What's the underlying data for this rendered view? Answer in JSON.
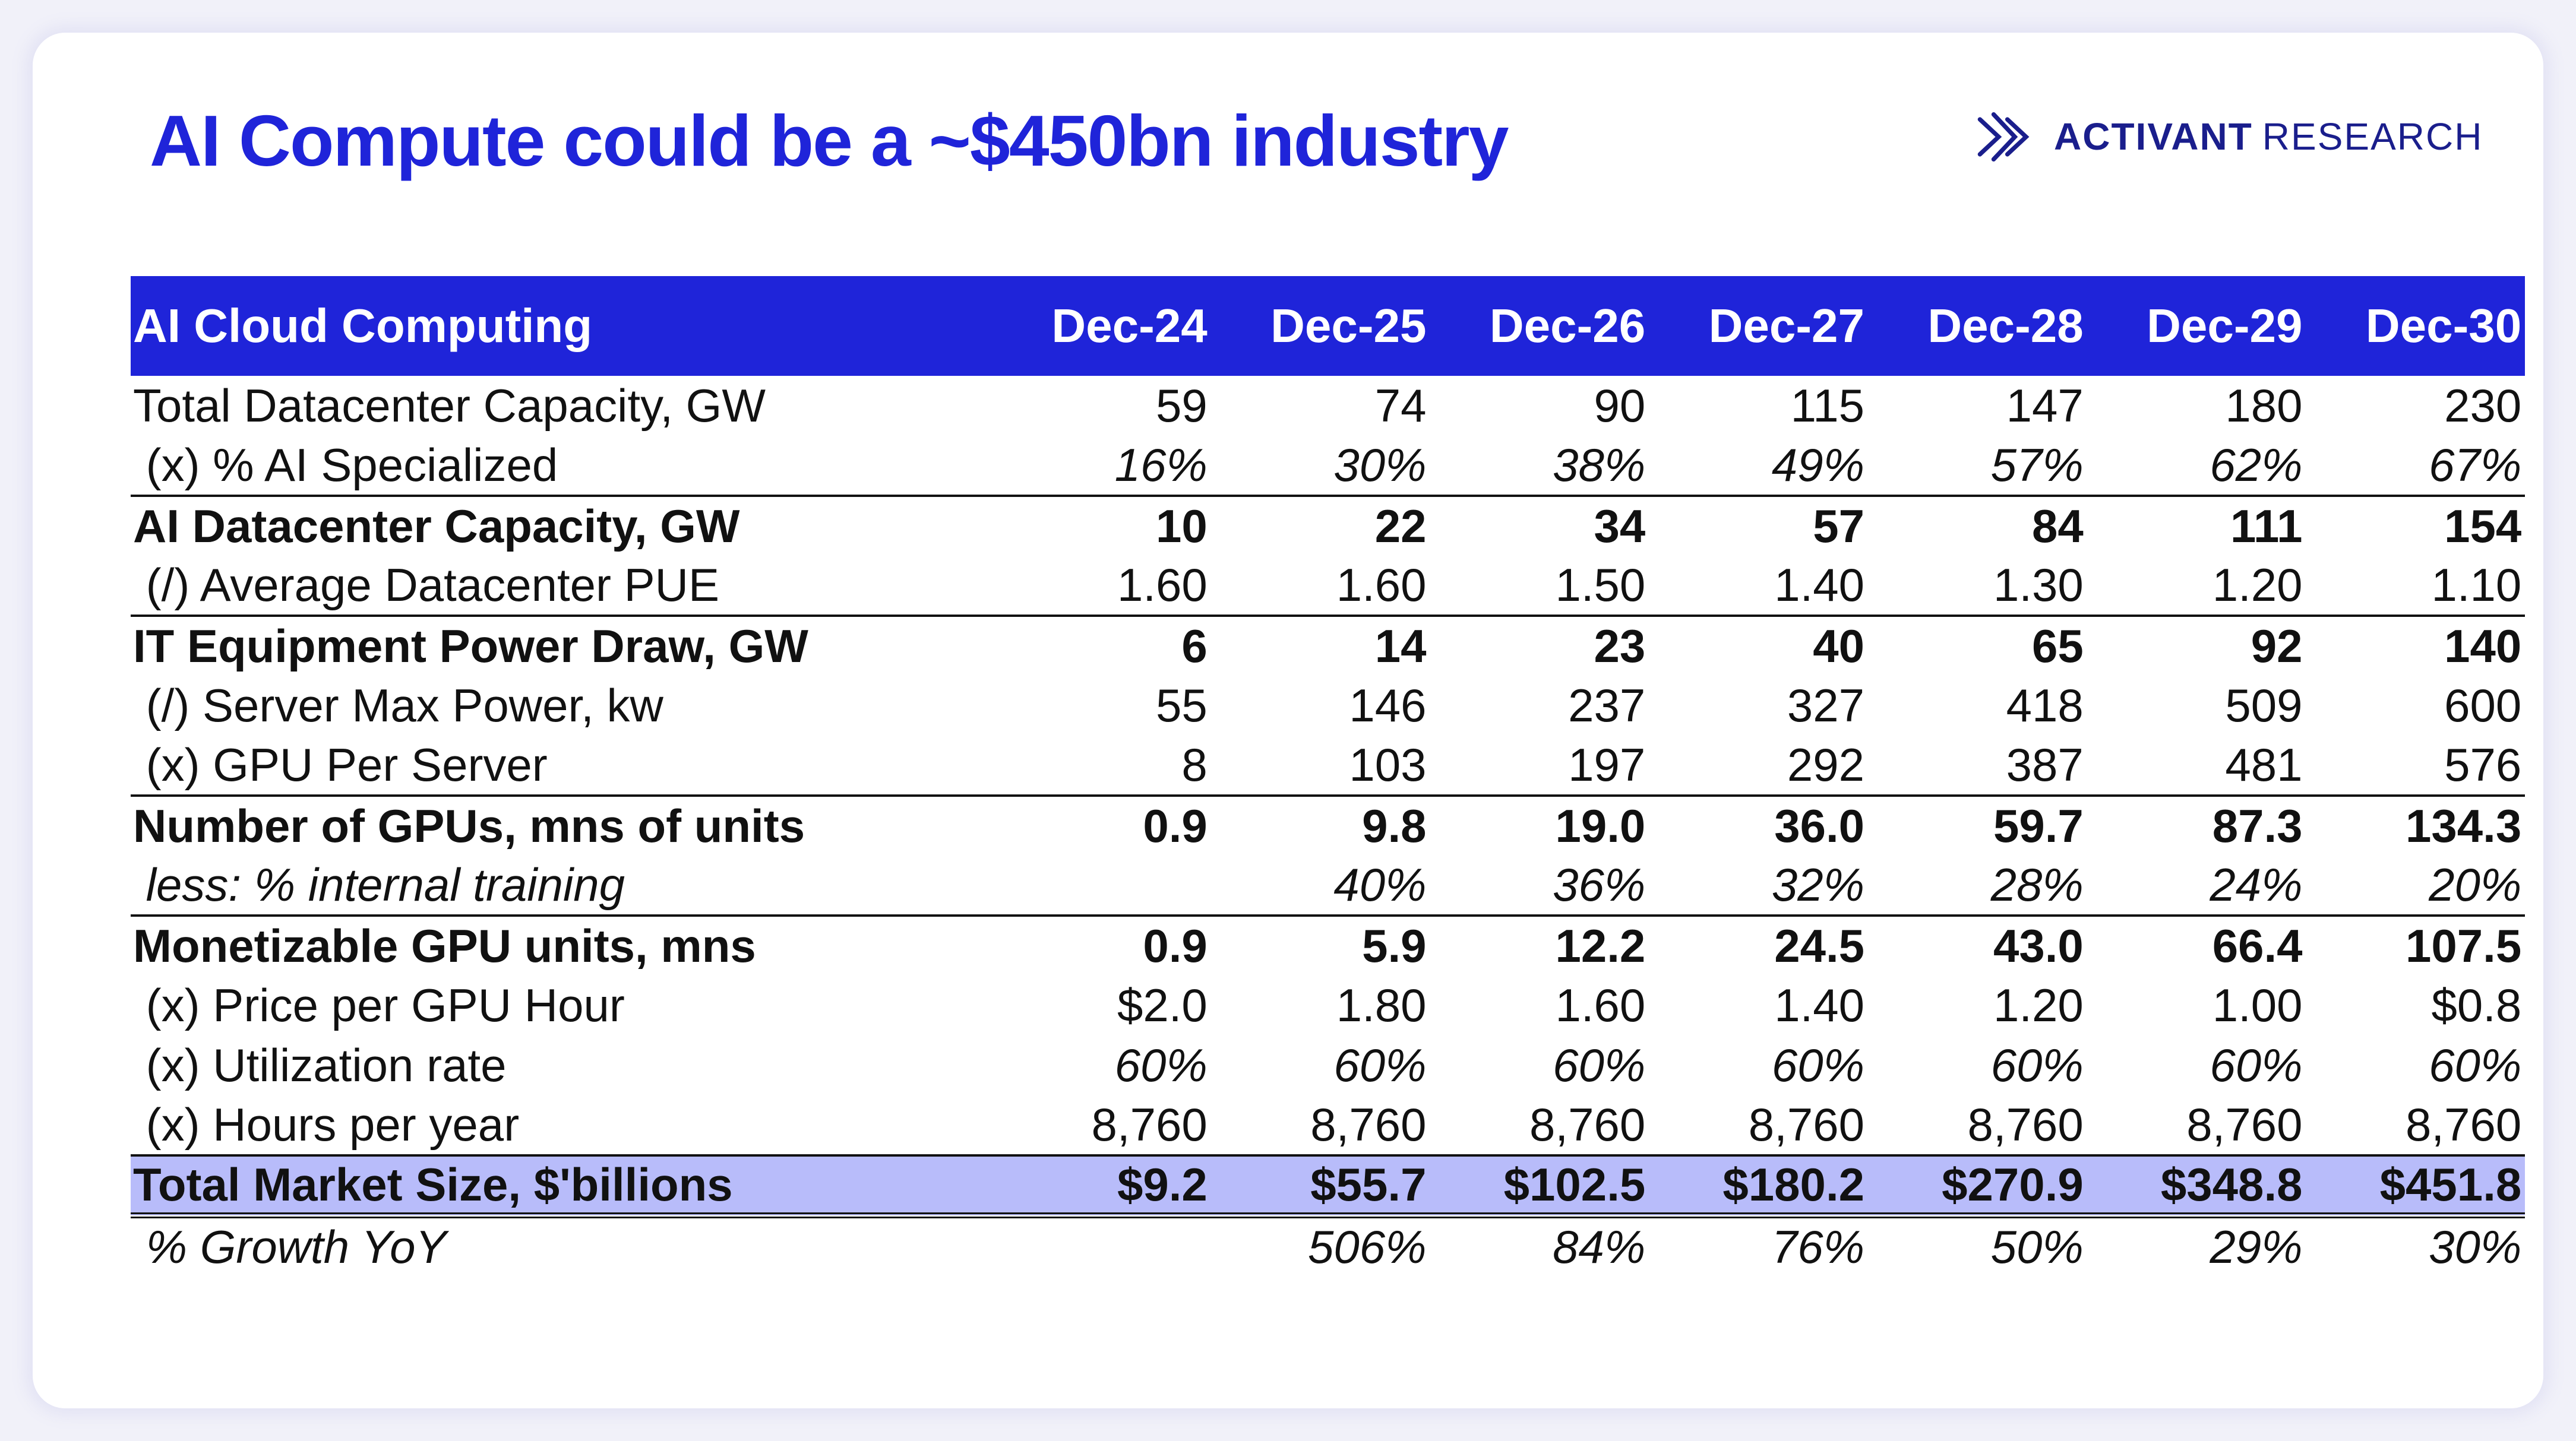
{
  "header": {
    "title": "AI Compute could be a ~$450bn industry",
    "brand_bold": "ACTIVANT",
    "brand_light": "RESEARCH",
    "brand_icon": "activant-chevron-logo-icon"
  },
  "colors": {
    "accent": "#1f24d9",
    "total_row": "#b8bcfa",
    "text": "#111111"
  },
  "table": {
    "header_label": "AI Cloud Computing",
    "columns": [
      "Dec-24",
      "Dec-25",
      "Dec-26",
      "Dec-27",
      "Dec-28",
      "Dec-29",
      "Dec-30"
    ],
    "rows": [
      {
        "label": "Total Datacenter Capacity, GW",
        "values": [
          "59",
          "74",
          "90",
          "115",
          "147",
          "180",
          "230"
        ],
        "bold": false,
        "italic": false,
        "sep": false,
        "total": false
      },
      {
        "label": " (x) % AI Specialized",
        "values": [
          "16%",
          "30%",
          "38%",
          "49%",
          "57%",
          "62%",
          "67%"
        ],
        "bold": false,
        "italic": "values",
        "sep": false,
        "total": false
      },
      {
        "label": "AI Datacenter Capacity, GW",
        "values": [
          "10",
          "22",
          "34",
          "57",
          "84",
          "111",
          "154"
        ],
        "bold": true,
        "italic": false,
        "sep": true,
        "total": false
      },
      {
        "label": " (/) Average Datacenter PUE",
        "values": [
          "1.60",
          "1.60",
          "1.50",
          "1.40",
          "1.30",
          "1.20",
          "1.10"
        ],
        "bold": false,
        "italic": false,
        "sep": false,
        "total": false
      },
      {
        "label": "IT Equipment Power Draw, GW",
        "values": [
          "6",
          "14",
          "23",
          "40",
          "65",
          "92",
          "140"
        ],
        "bold": true,
        "italic": false,
        "sep": true,
        "total": false
      },
      {
        "label": " (/) Server Max Power, kw",
        "values": [
          "55",
          "146",
          "237",
          "327",
          "418",
          "509",
          "600"
        ],
        "bold": false,
        "italic": false,
        "sep": false,
        "total": false
      },
      {
        "label": " (x) GPU Per Server",
        "values": [
          "8",
          "103",
          "197",
          "292",
          "387",
          "481",
          "576"
        ],
        "bold": false,
        "italic": false,
        "sep": false,
        "total": false
      },
      {
        "label": "Number of GPUs, mns of units",
        "values": [
          "0.9",
          "9.8",
          "19.0",
          "36.0",
          "59.7",
          "87.3",
          "134.3"
        ],
        "bold": true,
        "italic": false,
        "sep": true,
        "total": false
      },
      {
        "label": " less: % internal training",
        "values": [
          "",
          "40%",
          "36%",
          "32%",
          "28%",
          "24%",
          "20%"
        ],
        "bold": false,
        "italic": "all",
        "sep": false,
        "total": false
      },
      {
        "label": "Monetizable GPU units, mns",
        "values": [
          "0.9",
          "5.9",
          "12.2",
          "24.5",
          "43.0",
          "66.4",
          "107.5"
        ],
        "bold": true,
        "italic": false,
        "sep": true,
        "total": false
      },
      {
        "label": " (x) Price per GPU Hour",
        "values": [
          "$2.0",
          "1.80",
          "1.60",
          "1.40",
          "1.20",
          "1.00",
          "$0.8"
        ],
        "bold": false,
        "italic": false,
        "sep": false,
        "total": false
      },
      {
        "label": " (x) Utilization rate",
        "values": [
          "60%",
          "60%",
          "60%",
          "60%",
          "60%",
          "60%",
          "60%"
        ],
        "bold": false,
        "italic": "values",
        "sep": false,
        "total": false
      },
      {
        "label": " (x) Hours per year",
        "values": [
          "8,760",
          "8,760",
          "8,760",
          "8,760",
          "8,760",
          "8,760",
          "8,760"
        ],
        "bold": false,
        "italic": false,
        "sep": false,
        "total": false
      },
      {
        "label": "Total Market Size, $'billions",
        "values": [
          "$9.2",
          "$55.7",
          "$102.5",
          "$180.2",
          "$270.9",
          "$348.8",
          "$451.8"
        ],
        "bold": true,
        "italic": false,
        "sep": false,
        "total": true
      },
      {
        "label": " % Growth YoY",
        "values": [
          "",
          "506%",
          "84%",
          "76%",
          "50%",
          "29%",
          "30%"
        ],
        "bold": false,
        "italic": "all",
        "sep": false,
        "total": false
      }
    ]
  }
}
